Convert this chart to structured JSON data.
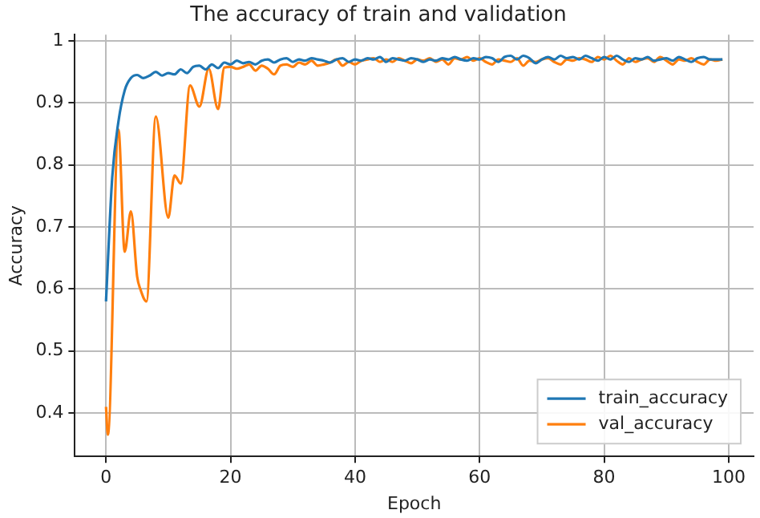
{
  "chart_data": {
    "type": "line",
    "title": "The accuracy of train and validation",
    "xlabel": "Epoch",
    "ylabel": "Accuracy",
    "xlim": [
      -5,
      104
    ],
    "xticks": [
      0,
      20,
      40,
      60,
      80,
      100
    ],
    "ylim": [
      0.33,
      1.01
    ],
    "yticks": [
      0.4,
      0.5,
      0.6,
      0.7,
      0.8,
      0.9,
      1.0
    ],
    "grid": true,
    "legend": "bottom right",
    "marker": "none",
    "line_style": "solid",
    "series": [
      {
        "name": "train_accuracy",
        "color": "#1f77b4",
        "x": [
          0,
          1,
          2,
          3,
          4,
          5,
          6,
          7,
          8,
          9,
          10,
          11,
          12,
          13,
          14,
          15,
          16,
          17,
          18,
          19,
          20,
          21,
          22,
          23,
          24,
          25,
          26,
          27,
          28,
          29,
          30,
          31,
          32,
          33,
          34,
          35,
          36,
          37,
          38,
          39,
          40,
          41,
          42,
          43,
          44,
          45,
          46,
          47,
          48,
          49,
          50,
          51,
          52,
          53,
          54,
          55,
          56,
          57,
          58,
          59,
          60,
          61,
          62,
          63,
          64,
          65,
          66,
          67,
          68,
          69,
          70,
          71,
          72,
          73,
          74,
          75,
          76,
          77,
          78,
          79,
          80,
          81,
          82,
          83,
          84,
          85,
          86,
          87,
          88,
          89,
          90,
          91,
          92,
          93,
          94,
          95,
          96,
          97,
          98,
          99
        ],
        "values": [
          0.58,
          0.78,
          0.87,
          0.92,
          0.94,
          0.945,
          0.94,
          0.944,
          0.95,
          0.944,
          0.948,
          0.946,
          0.954,
          0.948,
          0.958,
          0.96,
          0.954,
          0.962,
          0.956,
          0.965,
          0.962,
          0.968,
          0.964,
          0.966,
          0.962,
          0.968,
          0.97,
          0.965,
          0.97,
          0.972,
          0.966,
          0.97,
          0.968,
          0.972,
          0.97,
          0.968,
          0.965,
          0.97,
          0.972,
          0.966,
          0.97,
          0.968,
          0.972,
          0.97,
          0.974,
          0.966,
          0.972,
          0.97,
          0.968,
          0.972,
          0.97,
          0.966,
          0.97,
          0.968,
          0.972,
          0.97,
          0.974,
          0.97,
          0.968,
          0.972,
          0.97,
          0.974,
          0.972,
          0.966,
          0.974,
          0.976,
          0.97,
          0.976,
          0.972,
          0.964,
          0.97,
          0.974,
          0.97,
          0.976,
          0.972,
          0.974,
          0.97,
          0.976,
          0.972,
          0.968,
          0.974,
          0.97,
          0.976,
          0.97,
          0.966,
          0.972,
          0.97,
          0.974,
          0.968,
          0.97,
          0.972,
          0.968,
          0.974,
          0.97,
          0.966,
          0.972,
          0.974,
          0.97,
          0.97,
          0.97
        ]
      },
      {
        "name": "val_accuracy",
        "color": "#ff7f0e",
        "x": [
          0,
          0.3,
          2,
          3,
          4,
          5,
          5.5,
          6.5,
          8,
          10,
          11,
          12,
          13.5,
          15,
          16.5,
          18,
          19,
          20,
          21,
          22,
          23,
          24,
          25,
          26,
          27,
          28,
          29,
          30,
          31,
          32,
          33,
          34,
          35,
          36,
          37,
          38,
          39,
          40,
          41,
          42,
          43,
          44,
          45,
          46,
          47,
          48,
          49,
          50,
          51,
          52,
          53,
          54,
          55,
          56,
          57,
          58,
          59,
          60,
          61,
          62,
          63,
          64,
          65,
          66,
          67,
          68,
          69,
          70,
          71,
          72,
          73,
          74,
          75,
          76,
          77,
          78,
          79,
          80,
          81,
          82,
          83,
          84,
          85,
          86,
          87,
          88,
          89,
          90,
          91,
          92,
          93,
          94,
          95,
          96,
          97,
          98,
          99
        ],
        "values": [
          0.41,
          0.365,
          0.857,
          0.66,
          0.725,
          0.62,
          0.6,
          0.58,
          0.878,
          0.715,
          0.783,
          0.77,
          0.928,
          0.894,
          0.955,
          0.89,
          0.957,
          0.958,
          0.955,
          0.958,
          0.962,
          0.952,
          0.96,
          0.955,
          0.946,
          0.96,
          0.962,
          0.958,
          0.965,
          0.962,
          0.968,
          0.96,
          0.962,
          0.965,
          0.97,
          0.96,
          0.966,
          0.962,
          0.968,
          0.97,
          0.972,
          0.966,
          0.97,
          0.966,
          0.972,
          0.968,
          0.964,
          0.97,
          0.968,
          0.972,
          0.966,
          0.97,
          0.962,
          0.972,
          0.97,
          0.974,
          0.968,
          0.972,
          0.966,
          0.962,
          0.97,
          0.968,
          0.966,
          0.972,
          0.96,
          0.968,
          0.966,
          0.97,
          0.972,
          0.966,
          0.962,
          0.97,
          0.968,
          0.972,
          0.97,
          0.966,
          0.974,
          0.97,
          0.976,
          0.968,
          0.962,
          0.972,
          0.966,
          0.97,
          0.972,
          0.966,
          0.974,
          0.968,
          0.962,
          0.97,
          0.968,
          0.972,
          0.966,
          0.962,
          0.97,
          0.968,
          0.97
        ]
      }
    ]
  }
}
